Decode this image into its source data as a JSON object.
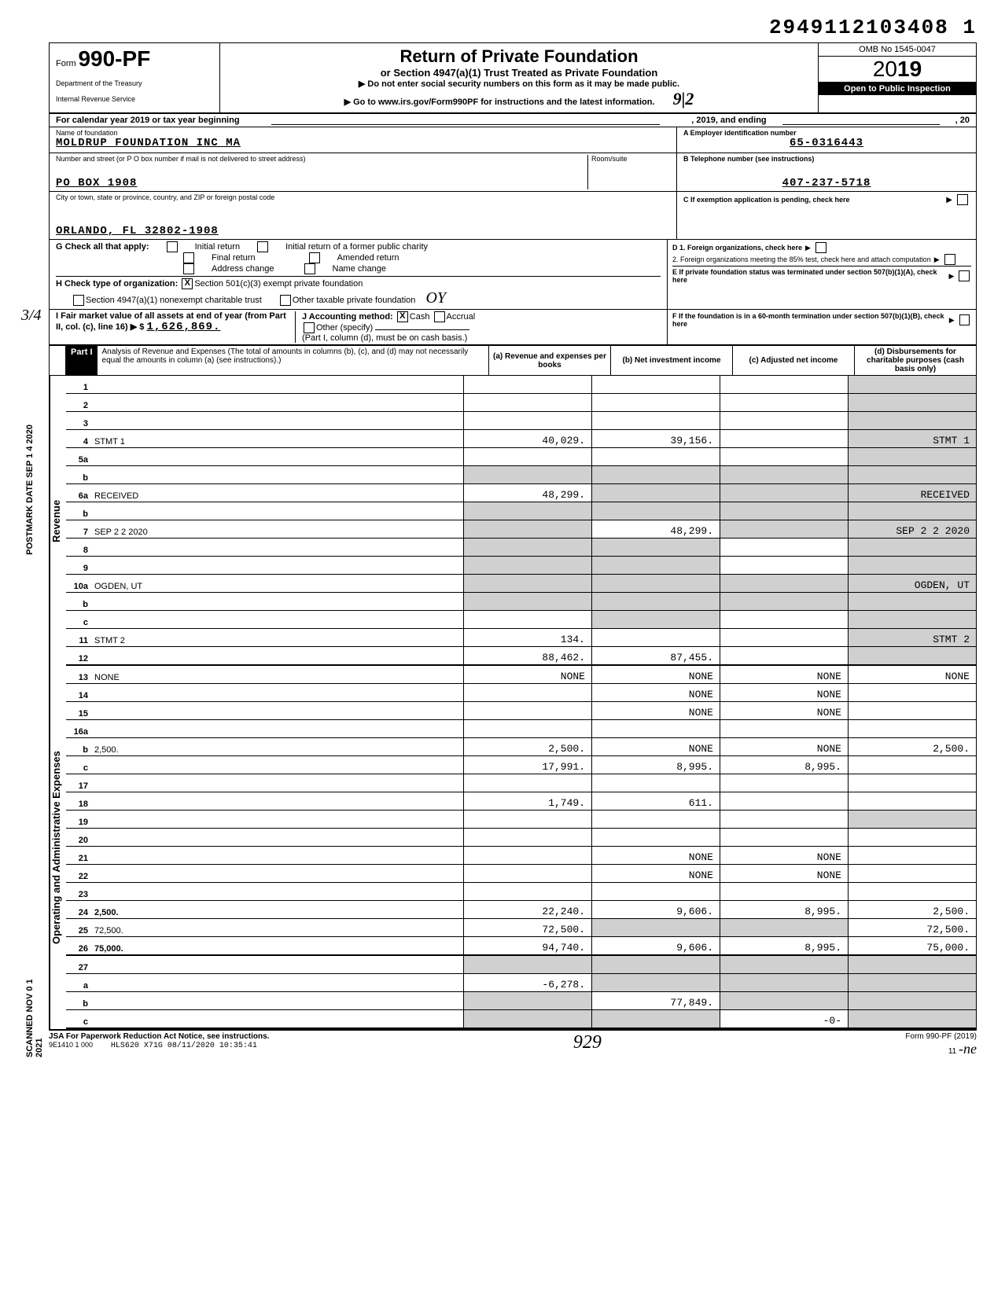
{
  "barcode": "2949112103408 1",
  "form": {
    "prefix": "Form",
    "number": "990-PF",
    "dept1": "Department of the Treasury",
    "dept2": "Internal Revenue Service"
  },
  "header": {
    "title": "Return of Private Foundation",
    "subtitle": "or Section 4947(a)(1) Trust Treated as Private Foundation",
    "warn": "▶ Do not enter social security numbers on this form as it may be made public.",
    "goto": "▶ Go to www.irs.gov/Form990PF for instructions and the latest information.",
    "omb": "OMB No 1545-0047",
    "year_prefix": "20",
    "year_bold": "19",
    "inspect": "Open to Public Inspection",
    "handwritten_912": "9|2"
  },
  "calyear": {
    "text": "For calendar year 2019 or tax year beginning",
    "mid": ", 2019, and ending",
    "end": ", 20"
  },
  "entity": {
    "name_label": "Name of foundation",
    "name": "MOLDRUP FOUNDATION INC MA",
    "addr_label": "Number and street (or P O box number if mail is not delivered to street address)",
    "room_label": "Room/suite",
    "addr": "PO BOX 1908",
    "city_label": "City or town, state or province, country, and ZIP or foreign postal code",
    "city": "ORLANDO, FL 32802-1908",
    "ein_label": "A  Employer identification number",
    "ein": "65-0316443",
    "phone_label": "B  Telephone number (see instructions)",
    "phone": "407-237-5718",
    "c_label": "C  If exemption application is pending, check here",
    "d1": "D  1. Foreign organizations, check here",
    "d2": "2. Foreign organizations meeting the 85% test, check here and attach computation",
    "e": "E  If private foundation status was terminated under section 507(b)(1)(A), check here",
    "f": "F  If the foundation is in a 60-month termination under section 507(b)(1)(B), check here"
  },
  "g": {
    "label": "G Check all that apply:",
    "initial": "Initial return",
    "initial_former": "Initial return of a former public charity",
    "final": "Final return",
    "amended": "Amended return",
    "addr_change": "Address change",
    "name_change": "Name change"
  },
  "h": {
    "label": "H Check type of organization:",
    "opt1": "Section 501(c)(3) exempt private foundation",
    "opt2": "Section 4947(a)(1) nonexempt charitable trust",
    "opt3": "Other taxable private foundation"
  },
  "i": {
    "label": "I  Fair market value of all assets at end of year (from Part II, col. (c), line 16) ▶ $",
    "value": "1,626,869."
  },
  "j": {
    "label": "J Accounting method:",
    "cash": "Cash",
    "accrual": "Accrual",
    "other": "Other (specify)",
    "note": "(Part I, column (d), must be on cash basis.)"
  },
  "part1": {
    "label": "Part I",
    "desc": "Analysis of Revenue and Expenses (The total of amounts in columns (b), (c), and (d) may not necessarily equal the amounts in column (a) (see instructions).)",
    "col_a": "(a) Revenue and expenses per books",
    "col_b": "(b) Net investment income",
    "col_c": "(c) Adjusted net income",
    "col_d": "(d) Disbursements for charitable purposes (cash basis only)"
  },
  "side_labels": {
    "revenue": "Revenue",
    "expenses": "Operating and Administrative Expenses"
  },
  "lines": [
    {
      "n": "1",
      "d": "",
      "a": "",
      "b": "",
      "c": "",
      "small": true,
      "d_shade": true
    },
    {
      "n": "2",
      "d": "",
      "a": "",
      "b": "",
      "c": "",
      "small": true,
      "d_shade": true
    },
    {
      "n": "3",
      "d": "",
      "a": "",
      "b": "",
      "c": "",
      "small": true,
      "d_shade": true
    },
    {
      "n": "4",
      "d": "STMT 1",
      "a": "40,029.",
      "b": "39,156.",
      "c": "",
      "d_shade": true
    },
    {
      "n": "5a",
      "d": "",
      "a": "",
      "b": "",
      "c": "",
      "d_shade": true
    },
    {
      "n": "b",
      "d": "",
      "a": "",
      "b": "",
      "c": "",
      "a_shade": true,
      "b_shade": true,
      "c_shade": true,
      "d_shade": true
    },
    {
      "n": "6a",
      "d": "RECEIVED",
      "a": "48,299.",
      "b": "",
      "c": "",
      "small": true,
      "b_shade": true,
      "c_shade": true,
      "d_shade": true
    },
    {
      "n": "b",
      "d": "",
      "a": "",
      "b": "",
      "c": "",
      "small": true,
      "a_shade": true,
      "b_shade": true,
      "c_shade": true,
      "d_shade": true
    },
    {
      "n": "7",
      "d": "SEP 2 2 2020",
      "a": "",
      "b": "48,299.",
      "c": "",
      "a_shade": true,
      "c_shade": true,
      "d_shade": true
    },
    {
      "n": "8",
      "d": "",
      "a": "",
      "b": "",
      "c": "",
      "a_shade": true,
      "b_shade": true,
      "d_shade": true
    },
    {
      "n": "9",
      "d": "",
      "a": "",
      "b": "",
      "c": "",
      "a_shade": true,
      "b_shade": true,
      "d_shade": true
    },
    {
      "n": "10a",
      "d": "OGDEN, UT",
      "a": "",
      "b": "",
      "c": "",
      "small": true,
      "a_shade": true,
      "b_shade": true,
      "c_shade": true,
      "d_shade": true
    },
    {
      "n": "b",
      "d": "",
      "a": "",
      "b": "",
      "c": "",
      "small": true,
      "a_shade": true,
      "b_shade": true,
      "c_shade": true,
      "d_shade": true
    },
    {
      "n": "c",
      "d": "",
      "a": "",
      "b": "",
      "c": "",
      "b_shade": true,
      "d_shade": true
    },
    {
      "n": "11",
      "d": "STMT 2",
      "a": "134.",
      "b": "",
      "c": "",
      "d_shade": true
    },
    {
      "n": "12",
      "d": "",
      "a": "88,462.",
      "b": "87,455.",
      "c": "",
      "bold": true,
      "d_shade": true,
      "thick": true
    }
  ],
  "exp_lines": [
    {
      "n": "13",
      "d": "NONE",
      "a": "NONE",
      "b": "NONE",
      "c": "NONE",
      "small": true
    },
    {
      "n": "14",
      "d": "",
      "a": "",
      "b": "NONE",
      "c": "NONE"
    },
    {
      "n": "15",
      "d": "",
      "a": "",
      "b": "NONE",
      "c": "NONE"
    },
    {
      "n": "16a",
      "d": "",
      "a": "",
      "b": "",
      "c": ""
    },
    {
      "n": "b",
      "d": "2,500.",
      "a": "2,500.",
      "b": "NONE",
      "c": "NONE"
    },
    {
      "n": "c",
      "d": "",
      "a": "17,991.",
      "b": "8,995.",
      "c": "8,995."
    },
    {
      "n": "17",
      "d": "",
      "a": "",
      "b": "",
      "c": ""
    },
    {
      "n": "18",
      "d": "",
      "a": "1,749.",
      "b": "611.",
      "c": ""
    },
    {
      "n": "19",
      "d": "",
      "a": "",
      "b": "",
      "c": "",
      "d_shade": true
    },
    {
      "n": "20",
      "d": "",
      "a": "",
      "b": "",
      "c": ""
    },
    {
      "n": "21",
      "d": "",
      "a": "",
      "b": "NONE",
      "c": "NONE"
    },
    {
      "n": "22",
      "d": "",
      "a": "",
      "b": "NONE",
      "c": "NONE"
    },
    {
      "n": "23",
      "d": "",
      "a": "",
      "b": "",
      "c": ""
    },
    {
      "n": "24",
      "d": "2,500.",
      "a": "22,240.",
      "b": "9,606.",
      "c": "8,995.",
      "bold": true
    },
    {
      "n": "25",
      "d": "72,500.",
      "a": "72,500.",
      "b": "",
      "c": "",
      "b_shade": true,
      "c_shade": true
    },
    {
      "n": "26",
      "d": "75,000.",
      "a": "94,740.",
      "b": "9,606.",
      "c": "8,995.",
      "small": true,
      "bold": true,
      "thick": true
    },
    {
      "n": "27",
      "d": "",
      "a": "",
      "b": "",
      "c": "",
      "a_shade": true,
      "b_shade": true,
      "c_shade": true,
      "d_shade": true
    },
    {
      "n": "a",
      "d": "",
      "a": "-6,278.",
      "b": "",
      "c": "",
      "small": true,
      "bold": true,
      "b_shade": true,
      "c_shade": true,
      "d_shade": true
    },
    {
      "n": "b",
      "d": "",
      "a": "",
      "b": "77,849.",
      "c": "",
      "bold": true,
      "a_shade": true,
      "c_shade": true,
      "d_shade": true
    },
    {
      "n": "c",
      "d": "",
      "a": "",
      "b": "",
      "c": "-0-",
      "bold": true,
      "a_shade": true,
      "b_shade": true,
      "d_shade": true,
      "thick": true
    }
  ],
  "footer": {
    "jsa": "JSA For Paperwork Reduction Act Notice, see instructions.",
    "code": "9E1410 1 000",
    "stamp": "HLS620 X71G 08/11/2020 10:35:41",
    "hand": "929",
    "form": "Form 990-PF (2019)",
    "page": "11"
  },
  "margin": {
    "scanned": "SCANNED NOV 0 1 2021",
    "postmark": "POSTMARK DATE SEP 1 4 2020",
    "fraction": "3/4"
  },
  "colors": {
    "shade": "#d0d0d0",
    "black": "#000000",
    "white": "#ffffff"
  }
}
